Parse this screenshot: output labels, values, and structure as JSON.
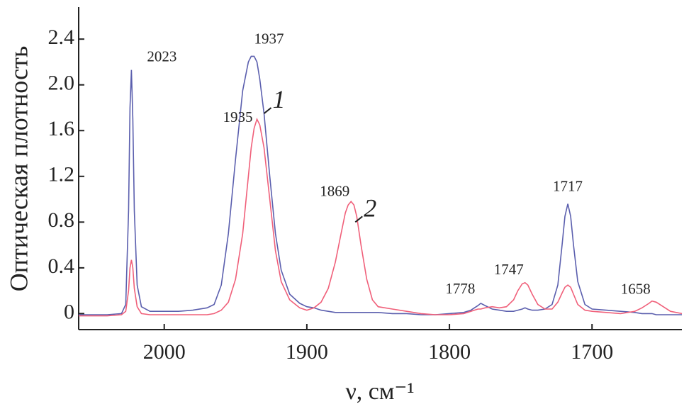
{
  "chart_data": {
    "type": "line",
    "xlabel": "ν, см⁻¹",
    "ylabel": "Оптическая плотность",
    "xlim": [
      2060,
      1637
    ],
    "ylim": [
      -0.14,
      2.68
    ],
    "xticks": [
      2000,
      1900,
      1800,
      1700
    ],
    "yticks": [
      0,
      {
        "value": 0.4,
        "label": "0.4"
      },
      {
        "value": 0.8,
        "label": "0.8"
      },
      {
        "value": 1.2,
        "label": "1.2"
      },
      {
        "value": 1.6,
        "label": "1.6"
      },
      {
        "value": 2,
        "label": "2.0"
      },
      {
        "value": 2.4,
        "label": "2.4"
      }
    ],
    "x": [
      2060,
      2040,
      2030,
      2027,
      2025,
      2024,
      2023,
      2022,
      2021,
      2019,
      2016,
      2010,
      2000,
      1990,
      1980,
      1970,
      1965,
      1960,
      1955,
      1950,
      1945,
      1941,
      1939,
      1937,
      1935,
      1933,
      1930,
      1926,
      1922,
      1918,
      1912,
      1905,
      1900,
      1895,
      1890,
      1885,
      1880,
      1876,
      1873,
      1871,
      1869,
      1867,
      1865,
      1862,
      1858,
      1854,
      1850,
      1840,
      1830,
      1820,
      1810,
      1800,
      1790,
      1785,
      1780,
      1778,
      1775,
      1770,
      1765,
      1760,
      1755,
      1752,
      1749,
      1747,
      1745,
      1742,
      1738,
      1733,
      1728,
      1724,
      1721,
      1719,
      1717,
      1715,
      1713,
      1710,
      1705,
      1700,
      1690,
      1680,
      1670,
      1665,
      1660,
      1658,
      1655,
      1650,
      1645,
      1637
    ],
    "series": [
      {
        "name": "1",
        "color": "#5b5fae",
        "values": [
          -0.01,
          -0.01,
          0.0,
          0.08,
          0.9,
          1.8,
          2.13,
          1.7,
          0.9,
          0.25,
          0.06,
          0.02,
          0.02,
          0.02,
          0.03,
          0.05,
          0.08,
          0.25,
          0.7,
          1.35,
          1.95,
          2.2,
          2.25,
          2.25,
          2.2,
          2.05,
          1.75,
          1.2,
          0.7,
          0.38,
          0.17,
          0.09,
          0.06,
          0.05,
          0.03,
          0.02,
          0.01,
          0.01,
          0.01,
          0.01,
          0.01,
          0.01,
          0.01,
          0.01,
          0.01,
          0.01,
          0.01,
          0.0,
          0.0,
          -0.01,
          -0.01,
          0.0,
          0.01,
          0.03,
          0.07,
          0.09,
          0.07,
          0.04,
          0.03,
          0.02,
          0.02,
          0.03,
          0.04,
          0.05,
          0.04,
          0.03,
          0.03,
          0.04,
          0.08,
          0.25,
          0.6,
          0.85,
          0.96,
          0.85,
          0.6,
          0.28,
          0.08,
          0.04,
          0.03,
          0.02,
          0.01,
          0.0,
          0.0,
          0.0,
          -0.01,
          -0.01,
          -0.01,
          -0.01
        ]
      },
      {
        "name": "2",
        "color": "#f0607a",
        "values": [
          -0.02,
          -0.02,
          -0.01,
          0.02,
          0.2,
          0.4,
          0.47,
          0.4,
          0.22,
          0.06,
          0.0,
          -0.01,
          -0.01,
          -0.01,
          -0.01,
          -0.01,
          0.0,
          0.03,
          0.1,
          0.3,
          0.7,
          1.2,
          1.45,
          1.62,
          1.7,
          1.65,
          1.45,
          1.0,
          0.55,
          0.28,
          0.12,
          0.05,
          0.03,
          0.05,
          0.1,
          0.22,
          0.45,
          0.7,
          0.88,
          0.95,
          0.98,
          0.95,
          0.85,
          0.6,
          0.3,
          0.12,
          0.06,
          0.04,
          0.02,
          0.0,
          -0.01,
          -0.01,
          0.0,
          0.02,
          0.04,
          0.04,
          0.05,
          0.06,
          0.05,
          0.06,
          0.12,
          0.2,
          0.26,
          0.27,
          0.25,
          0.17,
          0.08,
          0.04,
          0.04,
          0.1,
          0.18,
          0.23,
          0.25,
          0.23,
          0.17,
          0.08,
          0.03,
          0.02,
          0.01,
          0.0,
          0.02,
          0.05,
          0.09,
          0.11,
          0.1,
          0.06,
          0.02,
          0.0
        ]
      }
    ],
    "peak_labels": [
      {
        "text": "2023",
        "x": 2023,
        "y": 2.13
      },
      {
        "text": "1937",
        "x": 1937,
        "y": 2.25
      },
      {
        "text": "1935",
        "x": 1935,
        "y": 1.7
      },
      {
        "text": "1869",
        "x": 1869,
        "y": 0.98
      },
      {
        "text": "1778",
        "x": 1778,
        "y": 0.09
      },
      {
        "text": "1747",
        "x": 1747,
        "y": 0.27
      },
      {
        "text": "1717",
        "x": 1717,
        "y": 0.96
      },
      {
        "text": "1658",
        "x": 1658,
        "y": 0.11
      }
    ],
    "curve_labels": [
      {
        "text": "1",
        "x": 1930,
        "y": 1.75
      },
      {
        "text": "2",
        "x": 1866,
        "y": 0.8
      }
    ]
  }
}
